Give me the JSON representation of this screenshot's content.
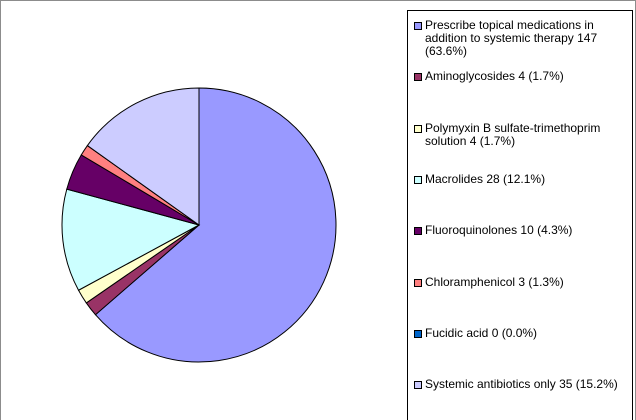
{
  "chart_data": {
    "type": "pie",
    "categories": [
      "Prescribe topical medications in addition to systemic therapy",
      "Aminoglycosides",
      "Polymyxin B sulfate-trimethoprim solution",
      "Macrolides",
      "Fluoroquinolones",
      "Chloramphenicol",
      "Fucidic acid",
      "Systemic antibiotics only"
    ],
    "values": [
      147,
      4,
      4,
      28,
      10,
      3,
      0,
      35
    ],
    "value_labels": [
      "147 (63.6%)",
      "4 (1.7%)",
      "4 (1.7%)",
      "28 (12.1%)",
      "10 (4.3%)",
      "3 (1.3%)",
      "0 (0.0%)",
      "35 (15.2%)"
    ],
    "colors": [
      "#9999ff",
      "#993366",
      "#ffffcc",
      "#ccffff",
      "#660066",
      "#ff8080",
      "#0066cc",
      "#ccccff"
    ],
    "legend": "right"
  }
}
